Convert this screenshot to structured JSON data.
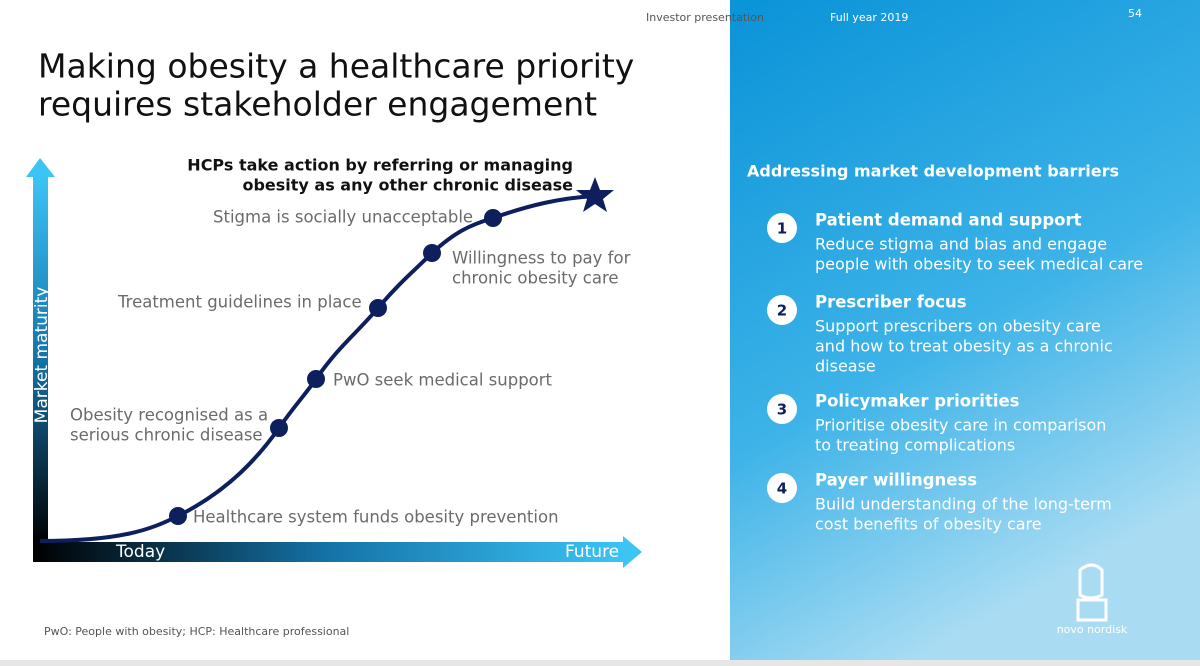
{
  "header": {
    "presentation": "Investor presentation",
    "period": "Full year 2019",
    "page": "54"
  },
  "title": [
    "Making obesity a healthcare priority",
    "requires stakeholder engagement"
  ],
  "diagram": {
    "y_axis": "Market maturity",
    "x_start": "Today",
    "x_end": "Future",
    "goal": [
      "HCPs take action by referring or managing",
      "obesity as any other chronic disease"
    ],
    "milestones": [
      {
        "label": [
          "Healthcare system funds obesity prevention"
        ]
      },
      {
        "label": [
          "Obesity recognised as a",
          "serious chronic disease"
        ]
      },
      {
        "label": [
          "PwO seek medical support"
        ]
      },
      {
        "label": [
          "Treatment guidelines in place"
        ]
      },
      {
        "label": [
          "Willingness to pay for",
          "chronic obesity care"
        ]
      },
      {
        "label": [
          "Stigma is socially unacceptable"
        ]
      }
    ]
  },
  "panel": {
    "heading": "Addressing market development barriers",
    "items": [
      {
        "number": "1",
        "title": "Patient demand and support",
        "description": [
          "Reduce stigma and bias and engage",
          "people with obesity to seek medical care"
        ]
      },
      {
        "number": "2",
        "title": "Prescriber focus",
        "description": [
          "Support prescribers on obesity care",
          "and how to treat obesity as a chronic",
          "disease"
        ]
      },
      {
        "number": "3",
        "title": "Policymaker priorities",
        "description": [
          "Prioritise obesity care in comparison",
          "to treating complications"
        ]
      },
      {
        "number": "4",
        "title": "Payer willingness",
        "description": [
          "Build understanding of the long-term",
          "cost benefits of obesity care"
        ]
      }
    ]
  },
  "footnote": "PwO: People with obesity; HCP: Healthcare professional",
  "logo": "novo nordisk"
}
